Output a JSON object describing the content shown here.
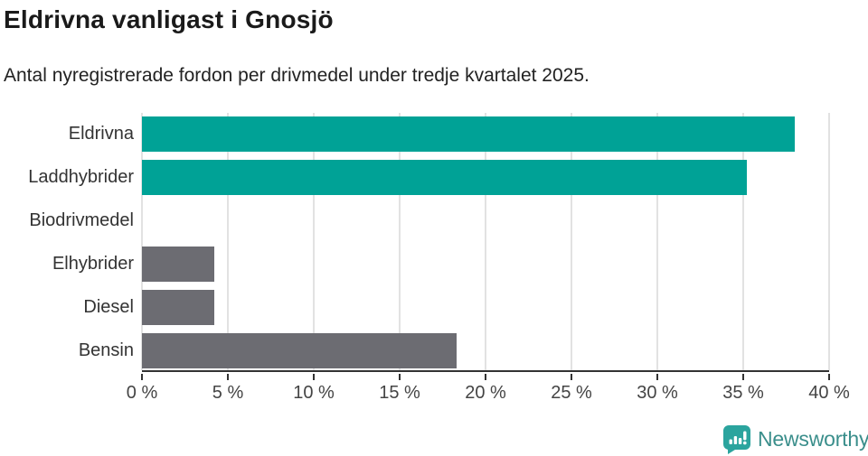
{
  "header": {
    "title": "Eldrivna vanligast i Gnosjö",
    "subtitle": "Antal nyregistrerade fordon per drivmedel under tredje kvartalet 2025."
  },
  "chart_data": {
    "type": "bar",
    "orientation": "horizontal",
    "title": "Eldrivna vanligast i Gnosjö",
    "subtitle": "Antal nyregistrerade fordon per drivmedel under tredje kvartalet 2025.",
    "categories": [
      "Eldrivna",
      "Laddhybrider",
      "Biodrivmedel",
      "Elhybrider",
      "Diesel",
      "Bensin"
    ],
    "values": [
      38.0,
      35.2,
      0,
      4.2,
      4.2,
      18.3
    ],
    "unit": "%",
    "xlabel": "",
    "ylabel": "",
    "xlim": [
      0,
      40
    ],
    "x_tick_values": [
      0,
      5,
      10,
      15,
      20,
      25,
      30,
      35,
      40
    ],
    "x_tick_labels": [
      "0 %",
      "5 %",
      "10 %",
      "15 %",
      "20 %",
      "25 %",
      "30 %",
      "35 %",
      "40 %"
    ],
    "grid": "vertical",
    "legend": "none",
    "bar_colors": [
      "#00a296",
      "#00a296",
      "#6c6c72",
      "#6c6c72",
      "#6c6c72",
      "#6c6c72"
    ]
  },
  "colors": {
    "accent_teal": "#00a296",
    "neutral_gray": "#6c6c72",
    "gridline": "#e2e2e2",
    "axis": "#333333",
    "logo_icon": "#2ba49e",
    "logo_text": "#3a8e8b"
  },
  "footer": {
    "brand": "Newsworthy",
    "logo_icon": "bar-chart-speech-bubble-icon"
  }
}
